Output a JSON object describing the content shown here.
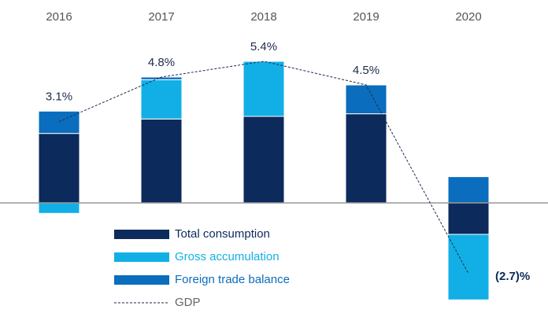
{
  "chart_data": {
    "type": "bar",
    "categories": [
      "2016",
      "2017",
      "2018",
      "2019",
      "2020"
    ],
    "ylim": [
      -4,
      7.5
    ],
    "series": [
      {
        "name": "Total consumption",
        "color": "#0c2a5b",
        "values": [
          2.65,
          3.2,
          3.3,
          3.4,
          -1.2
        ]
      },
      {
        "name": "Gross accumulation",
        "color": "#12afe6",
        "values": [
          -0.4,
          1.5,
          2.1,
          0,
          -2.5
        ]
      },
      {
        "name": "Foreign trade balance",
        "color": "#0b6dbd",
        "values": [
          0.85,
          0.1,
          0,
          1.1,
          1.0
        ]
      },
      {
        "name": "GDP",
        "type": "line",
        "color": "#1c2b4a",
        "values": [
          3.1,
          4.8,
          5.4,
          4.5,
          -2.7
        ],
        "value_labels": [
          "3.1%",
          "4.8%",
          "5.4%",
          "4.5%",
          "(2.7)%"
        ]
      }
    ]
  }
}
